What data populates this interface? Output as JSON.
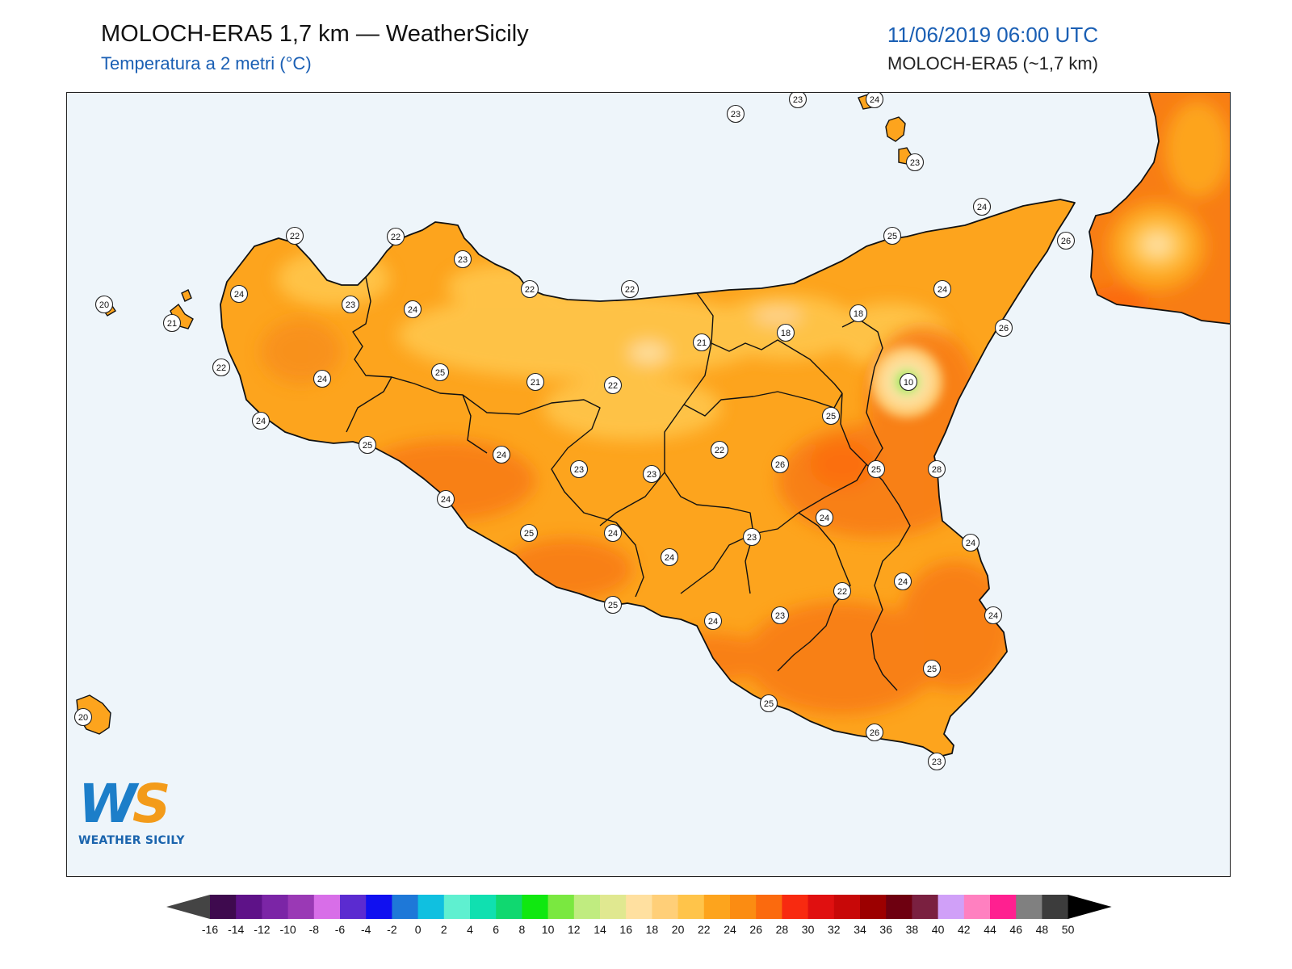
{
  "header": {
    "title": "MOLOCH-ERA5 1,7 km — WeatherSicily",
    "subtitle": "Temperatura a 2 metri (°C)",
    "datetime": "11/06/2019 06:00 UTC",
    "model": "MOLOCH-ERA5 (~1,7 km)"
  },
  "logo": {
    "letters_w": "W",
    "letters_s": "S",
    "name": "WEATHER SICILY"
  },
  "colors": {
    "sea": "#eef5fa",
    "land_base": "#fda41d",
    "land_dark": "#f87d14",
    "land_light": "#ffc44a",
    "coast": "#111111"
  },
  "legend": {
    "labels": [
      "-16",
      "-14",
      "-12",
      "-10",
      "-8",
      "-6",
      "-4",
      "-2",
      "0",
      "2",
      "4",
      "6",
      "8",
      "10",
      "12",
      "14",
      "16",
      "18",
      "20",
      "22",
      "24",
      "26",
      "28",
      "30",
      "32",
      "34",
      "36",
      "38",
      "40",
      "42",
      "44",
      "46",
      "48",
      "50"
    ],
    "colors": [
      "#3e0a4e",
      "#5e1288",
      "#7b25a6",
      "#9a39b5",
      "#d86ee8",
      "#5b2bd0",
      "#1010f0",
      "#1e78d8",
      "#10c0e0",
      "#5ff0d0",
      "#10e0b0",
      "#10d870",
      "#10e810",
      "#7ae840",
      "#c0ec80",
      "#e0e890",
      "#ffe0a0",
      "#ffcf78",
      "#ffc44a",
      "#fda41d",
      "#fb8c12",
      "#fb6a0e",
      "#f82a10",
      "#e01010",
      "#c80808",
      "#9c0000",
      "#6e0010",
      "#7a2040",
      "#d0a0f8",
      "#ff80c0",
      "#ff2090",
      "#808080",
      "#3c3c3c"
    ],
    "min_arrow": "#444444",
    "max_arrow": "#000000"
  },
  "stations": [
    {
      "v": "23"
    },
    {
      "v": "23"
    },
    {
      "v": "24"
    },
    {
      "v": "23"
    },
    {
      "v": "24"
    },
    {
      "v": "22"
    },
    {
      "v": "22"
    },
    {
      "v": "23"
    },
    {
      "v": "25"
    },
    {
      "v": "26"
    },
    {
      "v": "20"
    },
    {
      "v": "21"
    },
    {
      "v": "24"
    },
    {
      "v": "23"
    },
    {
      "v": "24"
    },
    {
      "v": "22"
    },
    {
      "v": "22"
    },
    {
      "v": "24"
    },
    {
      "v": "18"
    },
    {
      "v": "18"
    },
    {
      "v": "26"
    },
    {
      "v": "22"
    },
    {
      "v": "24"
    },
    {
      "v": "25"
    },
    {
      "v": "21"
    },
    {
      "v": "22"
    },
    {
      "v": "21"
    },
    {
      "v": "10"
    },
    {
      "v": "24"
    },
    {
      "v": "25"
    },
    {
      "v": "25"
    },
    {
      "v": "22"
    },
    {
      "v": "24"
    },
    {
      "v": "23"
    },
    {
      "v": "23"
    },
    {
      "v": "26"
    },
    {
      "v": "25"
    },
    {
      "v": "28"
    },
    {
      "v": "24"
    },
    {
      "v": "24"
    },
    {
      "v": "25"
    },
    {
      "v": "24"
    },
    {
      "v": "24"
    },
    {
      "v": "23"
    },
    {
      "v": "24"
    },
    {
      "v": "22"
    },
    {
      "v": "24"
    },
    {
      "v": "25"
    },
    {
      "v": "24"
    },
    {
      "v": "23"
    },
    {
      "v": "24"
    },
    {
      "v": "25"
    },
    {
      "v": "20"
    },
    {
      "v": "26"
    },
    {
      "v": "25"
    },
    {
      "v": "23"
    }
  ]
}
